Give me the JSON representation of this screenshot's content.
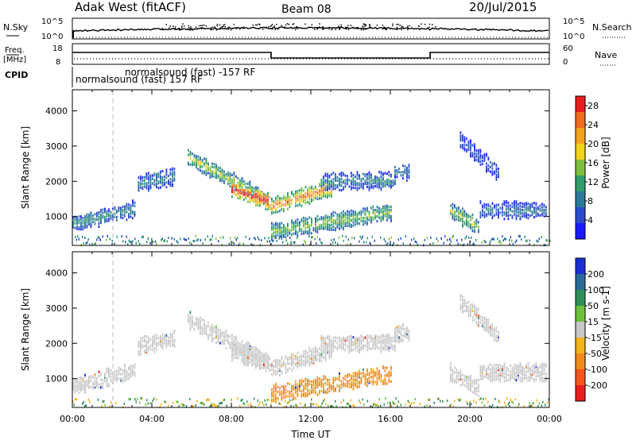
{
  "header": {
    "site": "Adak West (fitACF)",
    "beam": "Beam 08",
    "date": "20/Jul/2015"
  },
  "panels": {
    "nsky": {
      "left_label": "N.Sky",
      "right_label": "N.Search",
      "left_ticks": [
        "10^5",
        "10^0"
      ],
      "right_ticks": [
        "10^5",
        "10^0"
      ]
    },
    "freq": {
      "left_label_1": "Freq.",
      "left_label_2": "[MHz]",
      "left_ticks": [
        "18",
        "8"
      ],
      "right_label": "Nave",
      "right_ticks": [
        "60",
        "0"
      ]
    },
    "cpid": {
      "label": "CPID",
      "entries": [
        "normalsound (fast) -157 RF",
        "normalsound (fast) 157 RF"
      ]
    }
  },
  "chart_data": [
    {
      "type": "heatmap",
      "title": "",
      "xlabel": "",
      "ylabel": "Slant Range [km]",
      "xlim": [
        0,
        24
      ],
      "ylim": [
        180,
        4600
      ],
      "yticks": [
        "1000",
        "2000",
        "3000",
        "4000"
      ],
      "colorbar": {
        "label": "Power [dB]",
        "ticks": [
          "4",
          "8",
          "12",
          "16",
          "20",
          "24",
          "28"
        ],
        "range": [
          0,
          30
        ]
      },
      "bands": [
        {
          "t": [
            0.0,
            3.2
          ],
          "r": [
            800,
            1250
          ],
          "level": 9
        },
        {
          "t": [
            3.3,
            5.1
          ],
          "r": [
            1950,
            2150
          ],
          "level": 8
        },
        {
          "t": [
            5.8,
            9.8
          ],
          "r": [
            2700,
            1500
          ],
          "level": 14
        },
        {
          "t": [
            8.0,
            9.9
          ],
          "r": [
            1800,
            1450
          ],
          "level": 26
        },
        {
          "t": [
            10.0,
            13.0
          ],
          "r": [
            1300,
            1850
          ],
          "level": 20
        },
        {
          "t": [
            10.0,
            16.0
          ],
          "r": [
            600,
            1150
          ],
          "level": 13
        },
        {
          "t": [
            12.5,
            16.2
          ],
          "r": [
            2000,
            2050
          ],
          "level": 8
        },
        {
          "t": [
            16.2,
            17.0
          ],
          "r": [
            2300,
            2300
          ],
          "level": 7
        },
        {
          "t": [
            19.0,
            20.5
          ],
          "r": [
            1200,
            700
          ],
          "level": 14
        },
        {
          "t": [
            19.5,
            21.5
          ],
          "r": [
            3200,
            2200
          ],
          "level": 6
        },
        {
          "t": [
            20.5,
            23.9
          ],
          "r": [
            1200,
            1200
          ],
          "level": 7
        }
      ]
    },
    {
      "type": "heatmap",
      "title": "",
      "xlabel": "Time UT",
      "ylabel": "Slant Range [km]",
      "xlim": [
        0,
        24
      ],
      "ylim": [
        180,
        4600
      ],
      "xticks": [
        "00:00",
        "04:00",
        "08:00",
        "12:00",
        "16:00",
        "20:00",
        "00:00"
      ],
      "yticks": [
        "1000",
        "2000",
        "3000",
        "4000"
      ],
      "colorbar": {
        "label": "Velocity [m s-1]",
        "ticks": [
          "200",
          "100",
          "50",
          "15",
          "-15",
          "-50",
          "-100",
          "-200"
        ],
        "range": [
          -250,
          250
        ]
      },
      "bands": [
        {
          "t": [
            0.0,
            3.2
          ],
          "r": [
            800,
            1250
          ],
          "level": 0
        },
        {
          "t": [
            3.3,
            5.1
          ],
          "r": [
            1950,
            2150
          ],
          "level": 0
        },
        {
          "t": [
            5.8,
            9.8
          ],
          "r": [
            2700,
            1500
          ],
          "level": 0
        },
        {
          "t": [
            8.0,
            9.9
          ],
          "r": [
            1800,
            1450
          ],
          "level": 0
        },
        {
          "t": [
            10.0,
            13.0
          ],
          "r": [
            1300,
            1850
          ],
          "level": 0
        },
        {
          "t": [
            10.0,
            16.0
          ],
          "r": [
            600,
            1150
          ],
          "level": -60
        },
        {
          "t": [
            12.5,
            16.2
          ],
          "r": [
            2000,
            2050
          ],
          "level": 0
        },
        {
          "t": [
            16.2,
            17.0
          ],
          "r": [
            2300,
            2300
          ],
          "level": 0
        },
        {
          "t": [
            19.0,
            20.5
          ],
          "r": [
            1200,
            700
          ],
          "level": 0
        },
        {
          "t": [
            19.5,
            21.5
          ],
          "r": [
            3200,
            2200
          ],
          "level": 0
        },
        {
          "t": [
            20.5,
            23.9
          ],
          "r": [
            1200,
            1200
          ],
          "level": 0
        }
      ]
    }
  ]
}
